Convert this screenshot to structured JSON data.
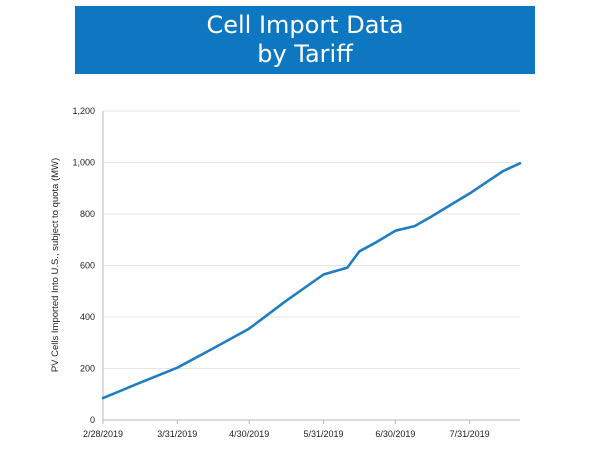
{
  "header": {
    "title": "Cell Import Data\nby Tariff"
  },
  "colors": {
    "title_bg": "#0d77c1",
    "title_text": "#ffffff",
    "line": "#1f7ec2",
    "axis": "#b8b8b8",
    "grid": "#dcdcdc"
  },
  "chart_data": {
    "type": "line",
    "title": "Cell Import Data by Tariff",
    "xlabel": "",
    "ylabel": "PV Cells Imported Into U.S., subject to quota (MW)",
    "x_axis_type": "date",
    "xlim": [
      "2019-02-28",
      "2019-08-21"
    ],
    "ylim": [
      0,
      1200
    ],
    "yticks": [
      0,
      200,
      400,
      600,
      800,
      1000,
      1200
    ],
    "ytick_labels": [
      "0",
      "200",
      "400",
      "600",
      "800",
      "1,000",
      "1,200"
    ],
    "xticks": [
      "2019-02-28",
      "2019-03-31",
      "2019-04-30",
      "2019-05-31",
      "2019-06-30",
      "2019-07-31"
    ],
    "xtick_labels": [
      "2/28/2019",
      "3/31/2019",
      "4/30/2019",
      "5/31/2019",
      "6/30/2019",
      "7/31/2019"
    ],
    "grid": true,
    "legend": "none",
    "series": [
      {
        "x": [
          "2019-02-28",
          "2019-03-15",
          "2019-03-31",
          "2019-04-15",
          "2019-04-30",
          "2019-05-15",
          "2019-05-31",
          "2019-06-10",
          "2019-06-15",
          "2019-06-22",
          "2019-06-30",
          "2019-07-08",
          "2019-07-15",
          "2019-07-31",
          "2019-08-14",
          "2019-08-21"
        ],
        "values": [
          85,
          143,
          203,
          278,
          355,
          460,
          565,
          592,
          655,
          690,
          735,
          753,
          790,
          880,
          967,
          997
        ]
      }
    ]
  }
}
